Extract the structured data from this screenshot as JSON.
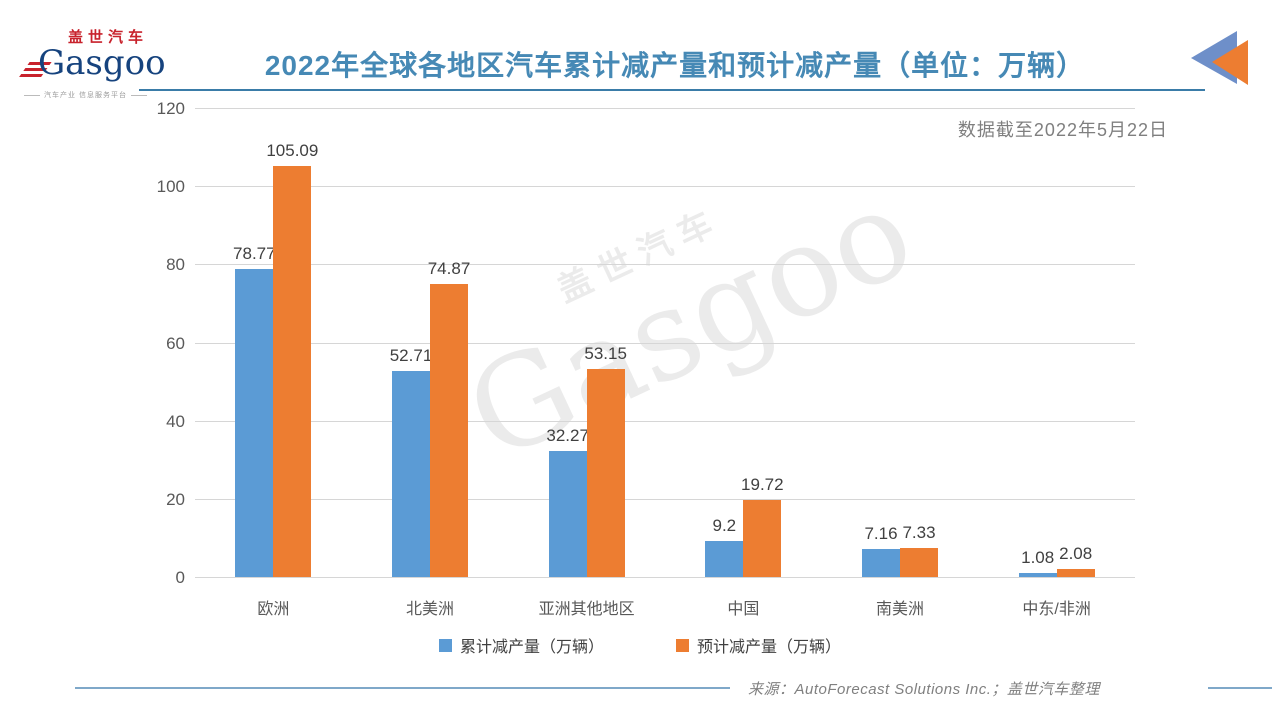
{
  "logo": {
    "cn": "盖世汽车",
    "en": "Gasgoo",
    "tagline": "汽车产业 信息服务平台"
  },
  "header": {
    "title": "2022年全球各地区汽车累计减产量和预计减产量（单位：万辆）"
  },
  "note": "数据截至2022年5月22日",
  "watermark": {
    "cn": "盖世汽车",
    "en": "Gasgoo"
  },
  "chart_data": {
    "type": "bar",
    "categories": [
      "欧洲",
      "北美洲",
      "亚洲其他地区",
      "中国",
      "南美洲",
      "中东/非洲"
    ],
    "series": [
      {
        "name": "累计减产量（万辆）",
        "color": "#5B9BD5",
        "values": [
          78.77,
          52.71,
          32.27,
          9.2,
          7.16,
          1.08
        ]
      },
      {
        "name": "预计减产量（万辆）",
        "color": "#ED7D31",
        "values": [
          105.09,
          74.87,
          53.15,
          19.72,
          7.33,
          2.08
        ]
      }
    ],
    "title": "2022年全球各地区汽车累计减产量和预计减产量（单位：万辆）",
    "xlabel": "",
    "ylabel": "",
    "ylim": [
      0,
      120
    ],
    "ytick_step": 20,
    "grid": true,
    "legend_position": "bottom"
  },
  "footer": {
    "source": "来源：AutoForecast Solutions Inc.；盖世汽车整理"
  },
  "colors": {
    "title": "#4689b5",
    "header_line": "#3a7ca8",
    "footer_line": "#7fa8c9",
    "icon_blue": "#6e8fc9",
    "icon_orange": "#ed7d31",
    "grid": "#d6d6d6",
    "axis_text": "#595959",
    "data_label": "#404040"
  }
}
